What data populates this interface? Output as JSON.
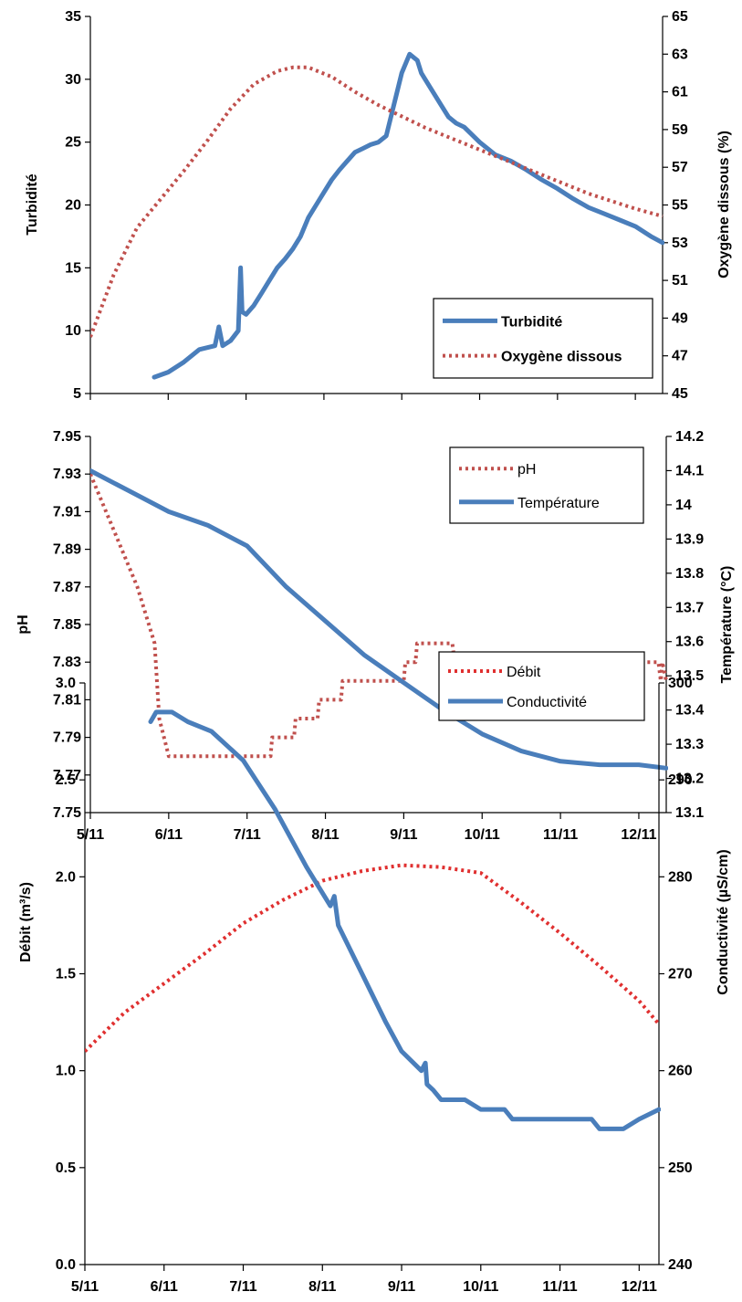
{
  "x_ticks": [
    "5/11",
    "6/11",
    "7/11",
    "8/11",
    "9/11",
    "10/11",
    "11/11",
    "12/11"
  ],
  "colors": {
    "blue": "#4a7ebb",
    "red": "#c0504d",
    "red_bright": "#e03030",
    "axis": "#000000"
  },
  "chart_data": [
    {
      "type": "line",
      "x_range": [
        0,
        7.35
      ],
      "left_axis": {
        "label": "Turbidité",
        "range": [
          5,
          35
        ],
        "ticks": [
          "5",
          "10",
          "15",
          "20",
          "25",
          "30",
          "35"
        ]
      },
      "right_axis": {
        "label": "Oxygène dissous (%)",
        "range": [
          45,
          65
        ],
        "ticks": [
          "45",
          "47",
          "49",
          "51",
          "53",
          "55",
          "57",
          "59",
          "61",
          "63",
          "65"
        ]
      },
      "legend_position": "bottom-right",
      "series": [
        {
          "name": "Turbidité",
          "axis": "left",
          "style": "solid",
          "color": "#4a7ebb",
          "x": [
            0.82,
            1.0,
            1.2,
            1.4,
            1.6,
            1.65,
            1.7,
            1.8,
            1.9,
            1.93,
            1.95,
            2.0,
            2.1,
            2.2,
            2.3,
            2.4,
            2.5,
            2.6,
            2.7,
            2.8,
            2.9,
            3.0,
            3.1,
            3.2,
            3.3,
            3.4,
            3.5,
            3.6,
            3.7,
            3.8,
            3.9,
            4.0,
            4.1,
            4.2,
            4.25,
            4.3,
            4.4,
            4.5,
            4.6,
            4.7,
            4.8,
            5.0,
            5.2,
            5.4,
            5.6,
            5.8,
            6.0,
            6.2,
            6.4,
            6.6,
            6.8,
            7.0,
            7.2,
            7.35
          ],
          "y": [
            6.3,
            6.7,
            7.5,
            8.5,
            8.8,
            10.3,
            8.8,
            9.2,
            10.0,
            15.0,
            11.5,
            11.3,
            12.0,
            13.0,
            14.0,
            15.0,
            15.7,
            16.5,
            17.5,
            19.0,
            20.0,
            21.0,
            22.0,
            22.8,
            23.5,
            24.2,
            24.5,
            24.8,
            25.0,
            25.5,
            28.0,
            30.5,
            32.0,
            31.5,
            30.5,
            30.0,
            29.0,
            28.0,
            27.0,
            26.5,
            26.2,
            25.0,
            24.0,
            23.5,
            22.8,
            22.0,
            21.3,
            20.5,
            19.8,
            19.3,
            18.8,
            18.3,
            17.5,
            17.0
          ]
        },
        {
          "name": "Oxygène dissous",
          "axis": "right",
          "style": "dotted",
          "color": "#c0504d",
          "x": [
            0.0,
            0.3,
            0.6,
            0.9,
            1.2,
            1.5,
            1.8,
            2.1,
            2.4,
            2.6,
            2.8,
            3.1,
            3.4,
            3.7,
            4.0,
            4.3,
            4.6,
            4.9,
            5.2,
            5.5,
            5.8,
            6.1,
            6.4,
            6.7,
            7.0,
            7.35
          ],
          "y": [
            48.0,
            51.3,
            53.8,
            55.3,
            56.8,
            58.4,
            60.1,
            61.4,
            62.1,
            62.3,
            62.3,
            61.8,
            61.0,
            60.3,
            59.7,
            59.1,
            58.6,
            58.1,
            57.6,
            57.1,
            56.6,
            56.1,
            55.6,
            55.2,
            54.8,
            54.4
          ]
        }
      ]
    },
    {
      "type": "line",
      "x_range": [
        0,
        7.35
      ],
      "left_axis": {
        "label": "pH",
        "range": [
          7.75,
          7.95
        ],
        "ticks": [
          "7.75",
          "7.77",
          "7.79",
          "7.81",
          "7.83",
          "7.85",
          "7.87",
          "7.89",
          "7.91",
          "7.93",
          "7.95"
        ]
      },
      "right_axis": {
        "label": "Température (°C)",
        "range": [
          13.1,
          14.2
        ],
        "ticks": [
          "13.1",
          "13.2",
          "13.3",
          "13.4",
          "13.5",
          "13.6",
          "13.7",
          "13.8",
          "13.9",
          "14",
          "14.1",
          "14.2"
        ]
      },
      "legend_position": "top-right",
      "series": [
        {
          "name": "pH",
          "axis": "left",
          "style": "dotted",
          "color": "#c0504d",
          "x": [
            0.0,
            0.3,
            0.6,
            0.82,
            0.88,
            1.0,
            1.5,
            2.0,
            2.3,
            2.32,
            2.6,
            2.62,
            2.9,
            2.92,
            3.2,
            3.22,
            3.5,
            3.52,
            4.0,
            4.02,
            4.15,
            4.17,
            4.3,
            4.5,
            4.62,
            4.65,
            4.7,
            4.72,
            5.0,
            6.0,
            7.0,
            7.25,
            7.28,
            7.3,
            7.35
          ],
          "y": [
            7.93,
            7.9,
            7.87,
            7.84,
            7.8,
            7.78,
            7.78,
            7.78,
            7.78,
            7.79,
            7.79,
            7.8,
            7.8,
            7.81,
            7.81,
            7.82,
            7.82,
            7.82,
            7.82,
            7.83,
            7.83,
            7.84,
            7.84,
            7.84,
            7.84,
            7.83,
            7.83,
            7.83,
            7.83,
            7.83,
            7.83,
            7.83,
            7.82,
            7.83,
            7.82
          ]
        },
        {
          "name": "Température",
          "axis": "right",
          "style": "solid",
          "color": "#4a7ebb",
          "x": [
            0.0,
            0.5,
            1.0,
            1.5,
            2.0,
            2.5,
            3.0,
            3.5,
            4.0,
            4.5,
            5.0,
            5.5,
            6.0,
            6.5,
            7.0,
            7.35
          ],
          "y": [
            14.1,
            14.04,
            13.98,
            13.94,
            13.88,
            13.76,
            13.66,
            13.56,
            13.48,
            13.4,
            13.33,
            13.28,
            13.25,
            13.24,
            13.24,
            13.23
          ]
        }
      ]
    },
    {
      "type": "line",
      "x_range": [
        0,
        7.25
      ],
      "left_axis": {
        "label": "Débit (m³/s)",
        "range": [
          0,
          3
        ],
        "ticks": [
          "0.0",
          "0.5",
          "1.0",
          "1.5",
          "2.0",
          "2.5",
          "3.0"
        ]
      },
      "right_axis": {
        "label": "Conductivité (µS/cm)",
        "range": [
          240,
          300
        ],
        "ticks": [
          "240",
          "250",
          "260",
          "270",
          "280",
          "290",
          "300"
        ]
      },
      "legend_position": "top-right",
      "series": [
        {
          "name": "Débit",
          "axis": "left",
          "style": "dotted",
          "color": "#e03030",
          "x": [
            0.0,
            0.5,
            1.0,
            1.5,
            2.0,
            2.5,
            3.0,
            3.5,
            4.0,
            4.5,
            5.0,
            5.5,
            6.0,
            6.5,
            7.0,
            7.25
          ],
          "y": [
            1.1,
            1.3,
            1.45,
            1.6,
            1.76,
            1.88,
            1.98,
            2.03,
            2.06,
            2.05,
            2.02,
            1.87,
            1.71,
            1.54,
            1.36,
            1.24
          ]
        },
        {
          "name": "Conductivité",
          "axis": "right",
          "style": "solid",
          "color": "#4a7ebb",
          "x": [
            0.83,
            0.9,
            1.1,
            1.3,
            1.6,
            2.0,
            2.4,
            2.8,
            3.1,
            3.15,
            3.2,
            3.5,
            3.8,
            4.0,
            4.25,
            4.3,
            4.32,
            4.4,
            4.5,
            4.8,
            5.0,
            5.3,
            5.4,
            5.8,
            6.0,
            6.4,
            6.5,
            6.8,
            7.0,
            7.25
          ],
          "y": [
            296,
            297,
            297,
            296,
            295,
            292,
            287,
            281,
            277,
            278,
            275,
            270,
            265,
            262,
            260,
            260.8,
            258.6,
            258,
            257,
            257,
            256,
            256,
            255,
            255,
            255,
            255,
            254,
            254,
            255,
            256
          ]
        }
      ]
    }
  ]
}
